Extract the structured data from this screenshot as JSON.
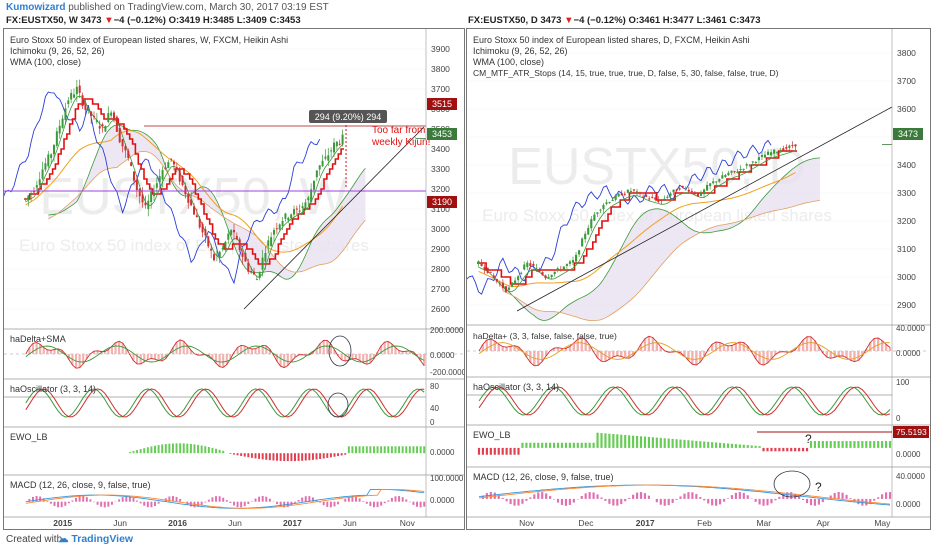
{
  "header": {
    "author": "Kumowizard",
    "published": " published on TradingView.com, March 30, 2017 03:19 EST"
  },
  "left": {
    "quote": {
      "symbol": "FX:EUSTX50, W",
      "last": "3473",
      "change": "−4 (−0.12%)",
      "o": "O:3419",
      "h": "H:3485",
      "l": "L:3409",
      "c": "C:3453"
    },
    "legend": [
      "Euro Stoxx 50 index of European listed shares, W, FXCM, Heikin Ashi",
      "Ichimoku (9, 26, 52, 26)",
      "WMA (100, close)"
    ],
    "watermark": "EUSTX50, W",
    "watermark_sub": "Euro Stoxx 50 index of European listed shares",
    "annotation": {
      "measure": "294 (9.20%) 294",
      "note_line1": "Too far from",
      "note_line2": "weekly Kijun!"
    },
    "price_badges": [
      "3515",
      "3453",
      "3190"
    ],
    "subpanels": [
      "haDelta+SMA",
      "haOscillator (3, 3, 14)",
      "EWO_LB",
      "MACD (12, 26, close, 9, false, true)"
    ],
    "time_axis": [
      "2015",
      "Jun",
      "2016",
      "Jun",
      "2017",
      "Jun",
      "Nov"
    ]
  },
  "right": {
    "quote": {
      "symbol": "FX:EUSTX50, D",
      "last": "3473",
      "change": "−4 (−0.12%)",
      "o": "O:3461",
      "h": "H:3477",
      "l": "L:3461",
      "c": "C:3473"
    },
    "legend": [
      "Euro Stoxx 50 index of European listed shares, D, FXCM, Heikin Ashi",
      "Ichimoku (9, 26, 52, 26)",
      "WMA (100, close)",
      "CM_MTF_ATR_Stops (14, 15, true, true, true, D, false, 5, 30, false, false, true, D)"
    ],
    "watermark": "EUSTX50, D",
    "watermark_sub": "Euro Stoxx 50 index of European listed shares",
    "price_badges": [
      "3473",
      "75.5193"
    ],
    "question_marks": [
      "?",
      "?"
    ],
    "subpanels": [
      "haDelta+ (3, 3, false, false, false, true)",
      "haOscillator (3, 3, 14)",
      "EWO_LB",
      "MACD (12, 26, close, 9, false, true)"
    ],
    "time_axis": [
      "Nov",
      "Dec",
      "2017",
      "Feb",
      "Mar",
      "Apr",
      "May"
    ]
  },
  "footer": {
    "created": "Created with",
    "brand": "TradingView"
  },
  "colors": {
    "bull": "#3a9a3a",
    "bear": "#d03030",
    "kijun": "#e01010",
    "tenkan": "#2b3fd6",
    "wma": "#f0a020",
    "cloud": "#e8e0f0",
    "ewo": "#66cc55",
    "ewo_neg": "#e04050",
    "macd": "#3399dd",
    "signal": "#ff8833"
  },
  "chart_data": [
    {
      "type": "line",
      "title": "Euro Stoxx 50 index of European listed shares, W, FXCM, Heikin Ashi",
      "xlabel": "",
      "ylabel": "",
      "ylim": [
        2550,
        3950
      ],
      "y_ticks": [
        "3900",
        "3800",
        "3700",
        "3600",
        "3500",
        "3400",
        "3300",
        "3200",
        "3100",
        "3000",
        "2900",
        "2800",
        "2700",
        "2600"
      ],
      "x_ticks": [
        "2015",
        "Jun",
        "2016",
        "Jun",
        "2017",
        "Jun",
        "Nov"
      ],
      "series": [
        {
          "values": [
            3150,
            3200,
            3300,
            3380,
            3520,
            3650,
            3700,
            3600,
            3550,
            3500,
            3600,
            3450,
            3350,
            3200,
            3100,
            3200,
            3300,
            3350,
            3250,
            3150,
            3050,
            2950,
            2850,
            2900,
            3000,
            2900,
            2800,
            2750,
            2900,
            3000,
            3050,
            3080,
            3100,
            3150,
            3300,
            3350,
            3420,
            3453
          ]
        }
      ],
      "levels": {
        "top_line": 3515,
        "current": 3453,
        "purple_line": 3190
      }
    },
    {
      "type": "line",
      "title": "Euro Stoxx 50 index of European listed shares, D, FXCM, Heikin Ashi",
      "xlabel": "",
      "ylabel": "",
      "ylim": [
        2850,
        3850
      ],
      "y_ticks": [
        "3800",
        "3700",
        "3600",
        "3500",
        "3400",
        "3300",
        "3200",
        "3100",
        "3000",
        "2900"
      ],
      "x_ticks": [
        "Nov",
        "Dec",
        "2017",
        "Feb",
        "Mar",
        "Apr",
        "May"
      ],
      "series": [
        {
          "values": [
            3050,
            3020,
            2980,
            2950,
            3000,
            3050,
            3030,
            3000,
            3020,
            3040,
            3060,
            3150,
            3220,
            3260,
            3280,
            3300,
            3310,
            3290,
            3280,
            3270,
            3300,
            3320,
            3310,
            3290,
            3330,
            3350,
            3370,
            3380,
            3400,
            3420,
            3440,
            3450,
            3460,
            3473
          ]
        }
      ],
      "levels": {
        "current": 3473,
        "ewo_level": 75.5193
      }
    }
  ]
}
